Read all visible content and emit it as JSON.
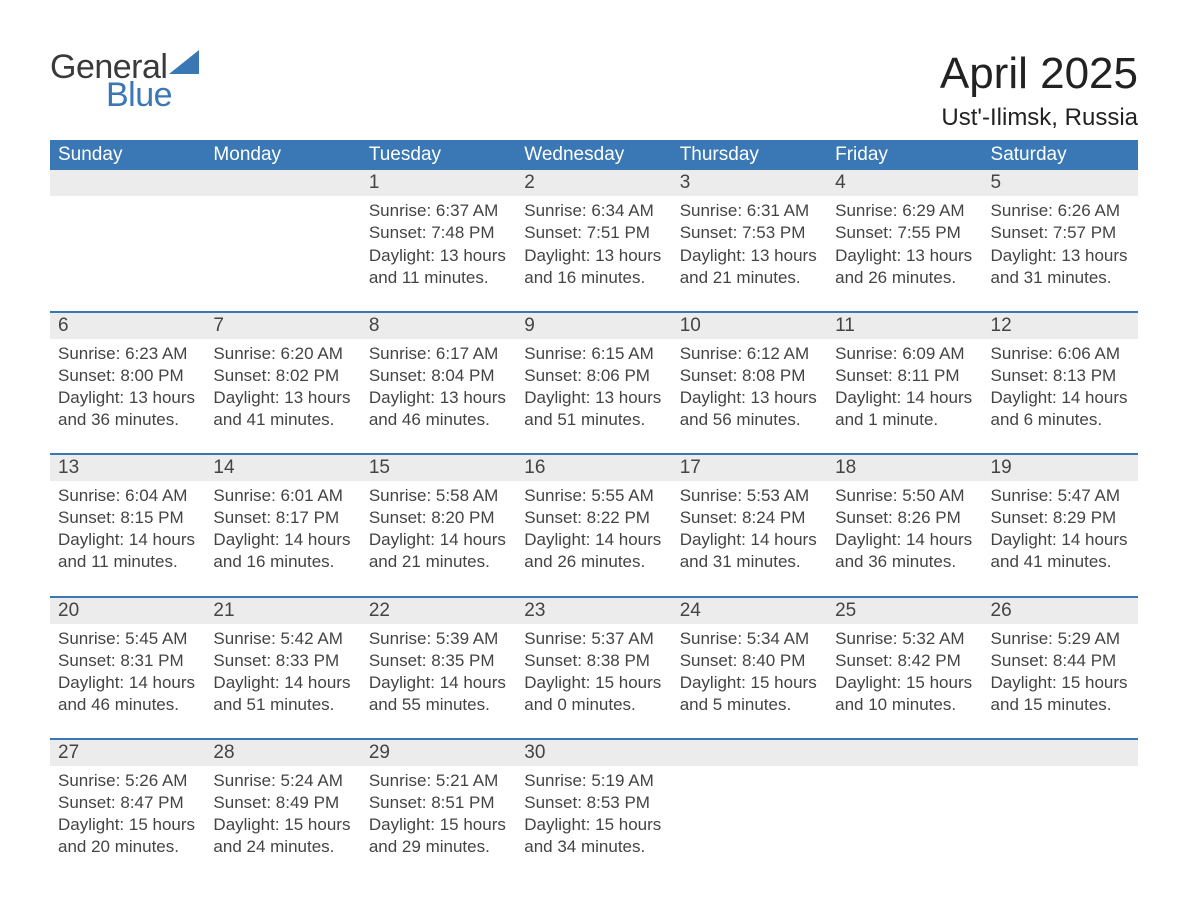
{
  "logo": {
    "word1": "General",
    "word2": "Blue",
    "sail_color": "#3a77b5"
  },
  "title": "April 2025",
  "location": "Ust'-Ilimsk, Russia",
  "colors": {
    "header_bg": "#3a77b5",
    "header_text": "#ffffff",
    "daynum_bg": "#ececec",
    "text": "#444444",
    "sep": "#3a77b5",
    "page_bg": "#ffffff"
  },
  "fonts": {
    "title_size": 44,
    "location_size": 24,
    "dow_size": 19,
    "daynum_size": 19,
    "body_size": 17
  },
  "dow": [
    "Sunday",
    "Monday",
    "Tuesday",
    "Wednesday",
    "Thursday",
    "Friday",
    "Saturday"
  ],
  "weeks": [
    [
      null,
      null,
      {
        "n": "1",
        "sunrise": "Sunrise: 6:37 AM",
        "sunset": "Sunset: 7:48 PM",
        "day1": "Daylight: 13 hours",
        "day2": "and 11 minutes."
      },
      {
        "n": "2",
        "sunrise": "Sunrise: 6:34 AM",
        "sunset": "Sunset: 7:51 PM",
        "day1": "Daylight: 13 hours",
        "day2": "and 16 minutes."
      },
      {
        "n": "3",
        "sunrise": "Sunrise: 6:31 AM",
        "sunset": "Sunset: 7:53 PM",
        "day1": "Daylight: 13 hours",
        "day2": "and 21 minutes."
      },
      {
        "n": "4",
        "sunrise": "Sunrise: 6:29 AM",
        "sunset": "Sunset: 7:55 PM",
        "day1": "Daylight: 13 hours",
        "day2": "and 26 minutes."
      },
      {
        "n": "5",
        "sunrise": "Sunrise: 6:26 AM",
        "sunset": "Sunset: 7:57 PM",
        "day1": "Daylight: 13 hours",
        "day2": "and 31 minutes."
      }
    ],
    [
      {
        "n": "6",
        "sunrise": "Sunrise: 6:23 AM",
        "sunset": "Sunset: 8:00 PM",
        "day1": "Daylight: 13 hours",
        "day2": "and 36 minutes."
      },
      {
        "n": "7",
        "sunrise": "Sunrise: 6:20 AM",
        "sunset": "Sunset: 8:02 PM",
        "day1": "Daylight: 13 hours",
        "day2": "and 41 minutes."
      },
      {
        "n": "8",
        "sunrise": "Sunrise: 6:17 AM",
        "sunset": "Sunset: 8:04 PM",
        "day1": "Daylight: 13 hours",
        "day2": "and 46 minutes."
      },
      {
        "n": "9",
        "sunrise": "Sunrise: 6:15 AM",
        "sunset": "Sunset: 8:06 PM",
        "day1": "Daylight: 13 hours",
        "day2": "and 51 minutes."
      },
      {
        "n": "10",
        "sunrise": "Sunrise: 6:12 AM",
        "sunset": "Sunset: 8:08 PM",
        "day1": "Daylight: 13 hours",
        "day2": "and 56 minutes."
      },
      {
        "n": "11",
        "sunrise": "Sunrise: 6:09 AM",
        "sunset": "Sunset: 8:11 PM",
        "day1": "Daylight: 14 hours",
        "day2": "and 1 minute."
      },
      {
        "n": "12",
        "sunrise": "Sunrise: 6:06 AM",
        "sunset": "Sunset: 8:13 PM",
        "day1": "Daylight: 14 hours",
        "day2": "and 6 minutes."
      }
    ],
    [
      {
        "n": "13",
        "sunrise": "Sunrise: 6:04 AM",
        "sunset": "Sunset: 8:15 PM",
        "day1": "Daylight: 14 hours",
        "day2": "and 11 minutes."
      },
      {
        "n": "14",
        "sunrise": "Sunrise: 6:01 AM",
        "sunset": "Sunset: 8:17 PM",
        "day1": "Daylight: 14 hours",
        "day2": "and 16 minutes."
      },
      {
        "n": "15",
        "sunrise": "Sunrise: 5:58 AM",
        "sunset": "Sunset: 8:20 PM",
        "day1": "Daylight: 14 hours",
        "day2": "and 21 minutes."
      },
      {
        "n": "16",
        "sunrise": "Sunrise: 5:55 AM",
        "sunset": "Sunset: 8:22 PM",
        "day1": "Daylight: 14 hours",
        "day2": "and 26 minutes."
      },
      {
        "n": "17",
        "sunrise": "Sunrise: 5:53 AM",
        "sunset": "Sunset: 8:24 PM",
        "day1": "Daylight: 14 hours",
        "day2": "and 31 minutes."
      },
      {
        "n": "18",
        "sunrise": "Sunrise: 5:50 AM",
        "sunset": "Sunset: 8:26 PM",
        "day1": "Daylight: 14 hours",
        "day2": "and 36 minutes."
      },
      {
        "n": "19",
        "sunrise": "Sunrise: 5:47 AM",
        "sunset": "Sunset: 8:29 PM",
        "day1": "Daylight: 14 hours",
        "day2": "and 41 minutes."
      }
    ],
    [
      {
        "n": "20",
        "sunrise": "Sunrise: 5:45 AM",
        "sunset": "Sunset: 8:31 PM",
        "day1": "Daylight: 14 hours",
        "day2": "and 46 minutes."
      },
      {
        "n": "21",
        "sunrise": "Sunrise: 5:42 AM",
        "sunset": "Sunset: 8:33 PM",
        "day1": "Daylight: 14 hours",
        "day2": "and 51 minutes."
      },
      {
        "n": "22",
        "sunrise": "Sunrise: 5:39 AM",
        "sunset": "Sunset: 8:35 PM",
        "day1": "Daylight: 14 hours",
        "day2": "and 55 minutes."
      },
      {
        "n": "23",
        "sunrise": "Sunrise: 5:37 AM",
        "sunset": "Sunset: 8:38 PM",
        "day1": "Daylight: 15 hours",
        "day2": "and 0 minutes."
      },
      {
        "n": "24",
        "sunrise": "Sunrise: 5:34 AM",
        "sunset": "Sunset: 8:40 PM",
        "day1": "Daylight: 15 hours",
        "day2": "and 5 minutes."
      },
      {
        "n": "25",
        "sunrise": "Sunrise: 5:32 AM",
        "sunset": "Sunset: 8:42 PM",
        "day1": "Daylight: 15 hours",
        "day2": "and 10 minutes."
      },
      {
        "n": "26",
        "sunrise": "Sunrise: 5:29 AM",
        "sunset": "Sunset: 8:44 PM",
        "day1": "Daylight: 15 hours",
        "day2": "and 15 minutes."
      }
    ],
    [
      {
        "n": "27",
        "sunrise": "Sunrise: 5:26 AM",
        "sunset": "Sunset: 8:47 PM",
        "day1": "Daylight: 15 hours",
        "day2": "and 20 minutes."
      },
      {
        "n": "28",
        "sunrise": "Sunrise: 5:24 AM",
        "sunset": "Sunset: 8:49 PM",
        "day1": "Daylight: 15 hours",
        "day2": "and 24 minutes."
      },
      {
        "n": "29",
        "sunrise": "Sunrise: 5:21 AM",
        "sunset": "Sunset: 8:51 PM",
        "day1": "Daylight: 15 hours",
        "day2": "and 29 minutes."
      },
      {
        "n": "30",
        "sunrise": "Sunrise: 5:19 AM",
        "sunset": "Sunset: 8:53 PM",
        "day1": "Daylight: 15 hours",
        "day2": "and 34 minutes."
      },
      null,
      null,
      null
    ]
  ]
}
